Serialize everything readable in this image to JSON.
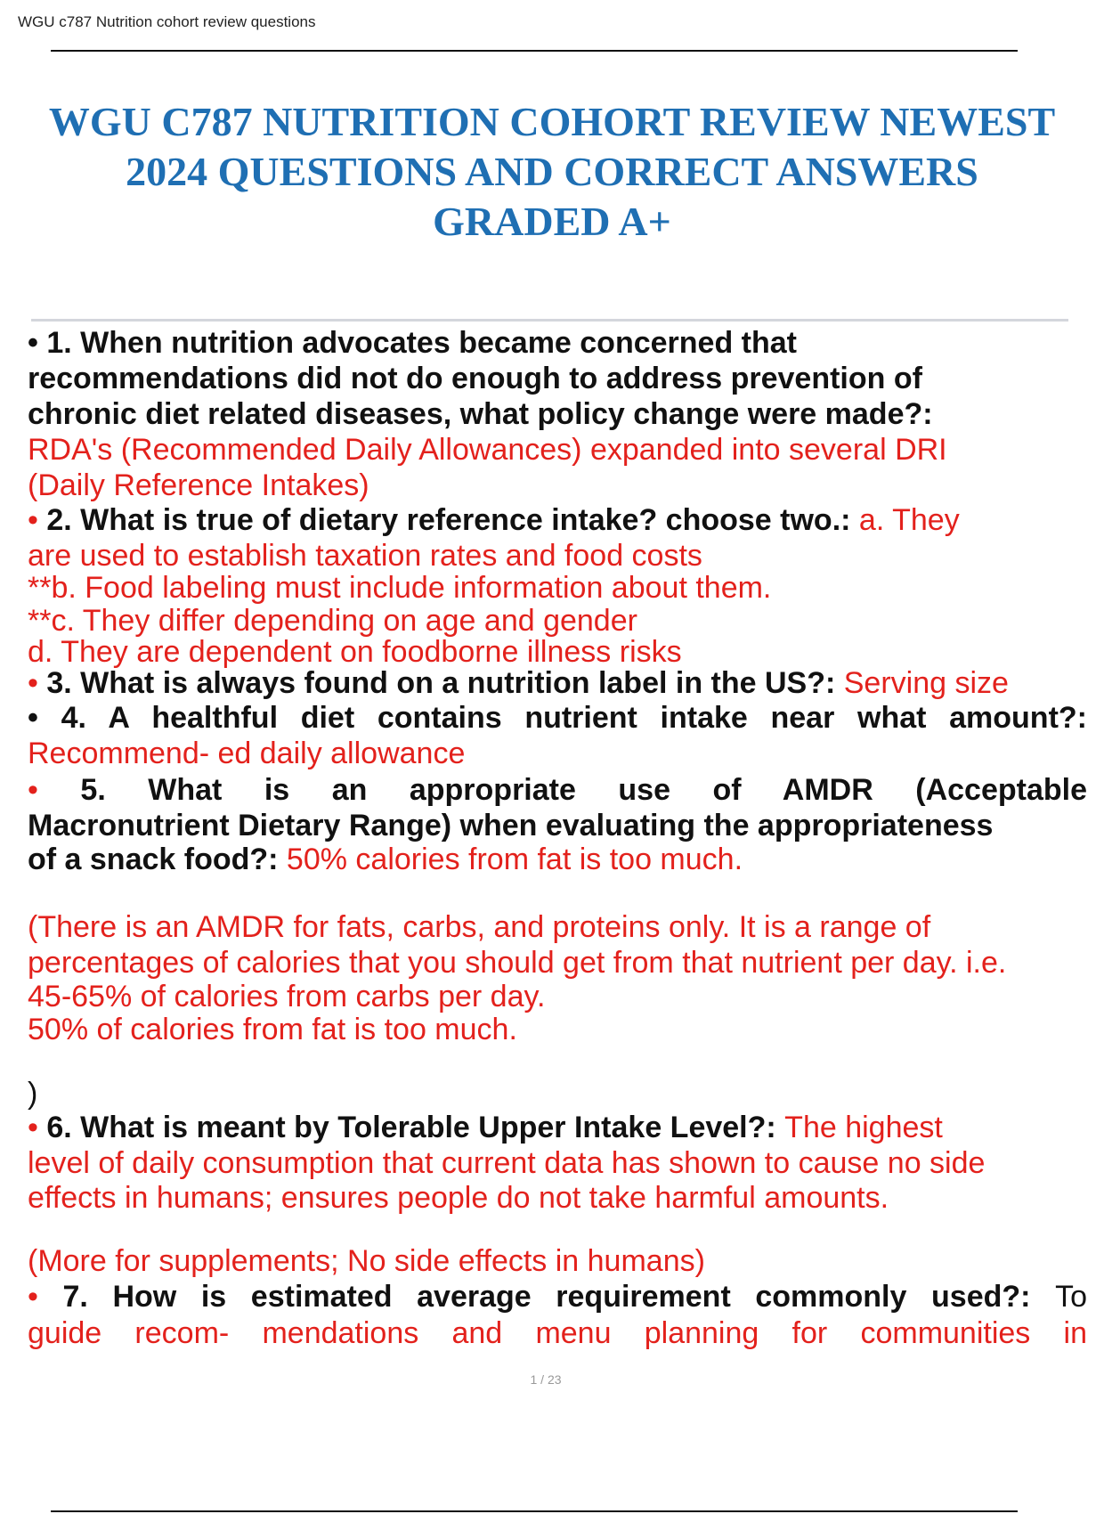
{
  "header": {
    "running_title": "WGU c787 Nutrition cohort review questions"
  },
  "title_lines": [
    "WGU C787 NUTRITION COHORT REVIEW NEWEST",
    "2024 QUESTIONS AND CORRECT ANSWERS",
    "GRADED A+"
  ],
  "colors": {
    "title": "#1f6fb3",
    "question": "#111111",
    "answer": "#e3211c"
  },
  "lines": [
    {
      "segs": [
        {
          "t": "• ",
          "s": "b"
        },
        {
          "t": "1. When nutrition advocates became concerned that",
          "s": "b"
        }
      ]
    },
    {
      "segs": [
        {
          "t": "recommendations did not do enough to address prevention of",
          "s": "b"
        }
      ]
    },
    {
      "segs": [
        {
          "t": "chronic diet related diseases, what policy change were made?:",
          "s": "b"
        }
      ]
    },
    {
      "segs": [
        {
          "t": "RDA's (Recommended Daily Allowances) expanded into several DRI",
          "s": "r"
        }
      ]
    },
    {
      "segs": [
        {
          "t": "(Daily Reference Intakes)",
          "s": "r"
        }
      ]
    },
    {
      "segs": [
        {
          "t": "• ",
          "s": "r"
        },
        {
          "t": "2. What is true of dietary reference intake? choose two.: ",
          "s": "b"
        },
        {
          "t": "a. They",
          "s": "r"
        }
      ]
    },
    {
      "segs": [
        {
          "t": "are used to establish taxation rates and food costs",
          "s": "r"
        }
      ]
    },
    {
      "segs": [
        {
          "t": "**b. Food labeling must include information about them.",
          "s": "r"
        }
      ]
    },
    {
      "segs": [
        {
          "t": "**c. They differ depending on age and gender",
          "s": "r"
        }
      ]
    },
    {
      "segs": [
        {
          "t": "d. They are dependent on foodborne illness risks",
          "s": "r"
        }
      ]
    },
    {
      "segs": [
        {
          "t": "• ",
          "s": "r"
        },
        {
          "t": "3. What is always found on a nutrition label in the US?: ",
          "s": "b"
        },
        {
          "t": "Serving size",
          "s": "r"
        }
      ]
    },
    {
      "j": true,
      "segs": [
        {
          "t": "• 4. A healthful diet contains nutrient intake near what amount?:",
          "s": "b"
        }
      ]
    },
    {
      "segs": [
        {
          "t": "Recommend- ed daily allowance",
          "s": "r"
        }
      ]
    },
    {
      "j": true,
      "segs": [
        {
          "t": "• ",
          "s": "r"
        },
        {
          "t": "5. What is an appropriate use of AMDR (Acceptable",
          "s": "b"
        }
      ]
    },
    {
      "segs": [
        {
          "t": "Macronutrient Dietary Range) when evaluating the appropriateness",
          "s": "b"
        }
      ]
    },
    {
      "segs": [
        {
          "t": "of a snack food?: ",
          "s": "b"
        },
        {
          "t": "50% calories from fat is too much.",
          "s": "r"
        }
      ]
    },
    {
      "segs": [
        {
          "t": "(There is an AMDR for fats, carbs, and proteins only. It is a range of",
          "s": "r"
        }
      ]
    },
    {
      "segs": [
        {
          "t": "percentages of calories that you should get from that nutrient per day. i.e.",
          "s": "r"
        }
      ]
    },
    {
      "segs": [
        {
          "t": "45-65% of calories from carbs per day.",
          "s": "r"
        }
      ]
    },
    {
      "segs": [
        {
          "t": "50% of calories from fat is too much.",
          "s": "r"
        }
      ]
    },
    {
      "segs": [
        {
          "t": ")",
          "s": "k"
        }
      ]
    },
    {
      "segs": [
        {
          "t": "• ",
          "s": "r"
        },
        {
          "t": "6. What is meant by Tolerable Upper Intake Level?: ",
          "s": "b"
        },
        {
          "t": "The highest",
          "s": "r"
        }
      ]
    },
    {
      "segs": [
        {
          "t": "level of daily consumption that current data has shown to cause no side",
          "s": "r"
        }
      ]
    },
    {
      "segs": [
        {
          "t": "effects in humans; ensures people do not take harmful amounts.",
          "s": "r"
        }
      ]
    },
    {
      "segs": [
        {
          "t": "(More for supplements; No side effects in humans)",
          "s": "r"
        }
      ]
    },
    {
      "j": true,
      "segs": [
        {
          "t": "• ",
          "s": "r"
        },
        {
          "t": "7. How is estimated average requirement commonly used?: ",
          "s": "b"
        },
        {
          "t": "To",
          "s": "k"
        }
      ]
    },
    {
      "j": true,
      "segs": [
        {
          "t": "guide recom- mendations and menu planning for communities in",
          "s": "r"
        }
      ]
    }
  ],
  "page_number": "1 / 23"
}
